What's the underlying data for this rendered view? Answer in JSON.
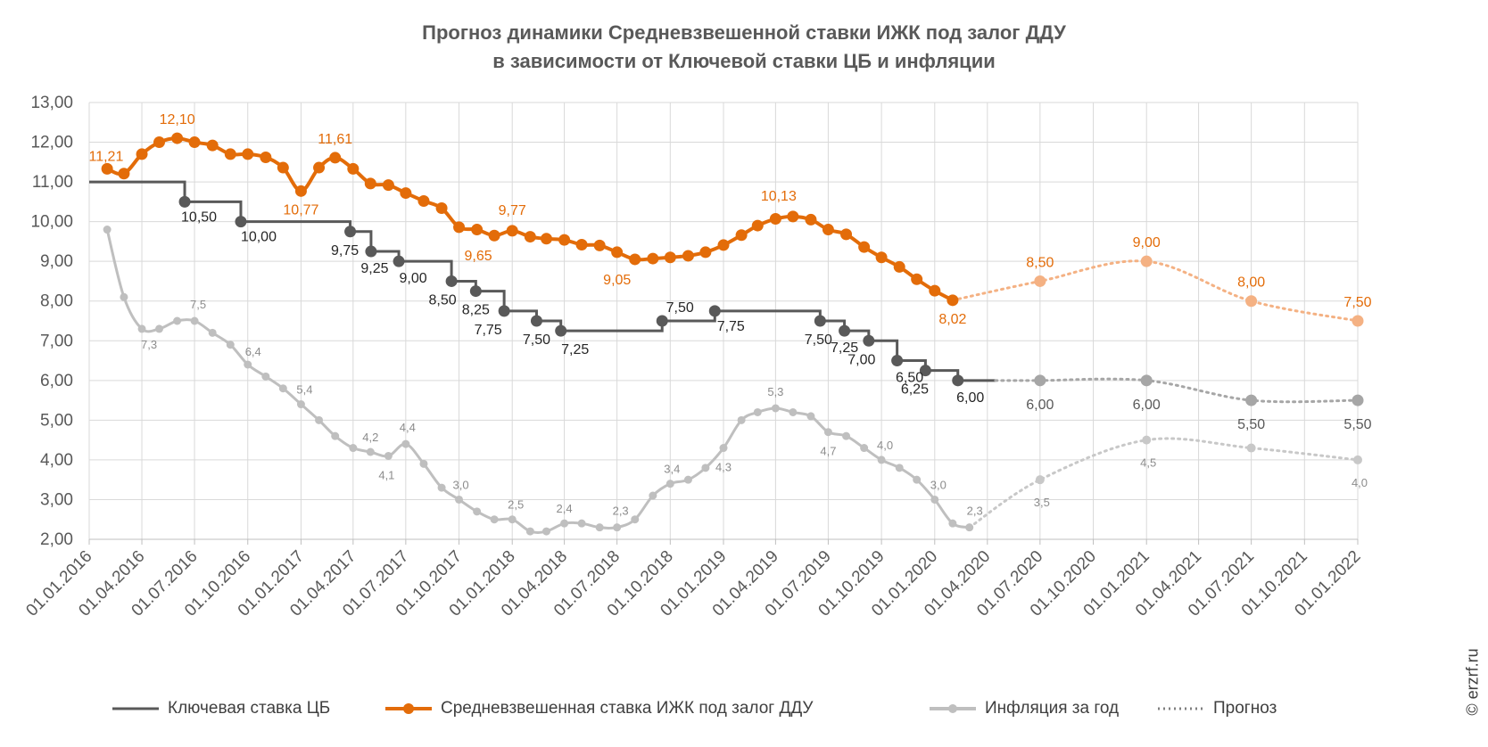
{
  "chart_data": {
    "type": "line",
    "title": "Прогноз динамики Средневзвешенной ставки ИЖК под залог ДДУ",
    "subtitle": "в зависимости от Ключевой ставки ЦБ и инфляции",
    "ylim": [
      2,
      13
    ],
    "yticks": [
      "2,00",
      "3,00",
      "4,00",
      "5,00",
      "6,00",
      "7,00",
      "8,00",
      "9,00",
      "10,00",
      "11,00",
      "12,00",
      "13,00"
    ],
    "xticks": [
      "01.01.2016",
      "01.04.2016",
      "01.07.2016",
      "01.10.2016",
      "01.01.2017",
      "01.04.2017",
      "01.07.2017",
      "01.10.2017",
      "01.01.2018",
      "01.04.2018",
      "01.07.2018",
      "01.10.2018",
      "01.01.2019",
      "01.04.2019",
      "01.07.2019",
      "01.10.2019",
      "01.01.2020",
      "01.04.2020",
      "01.07.2020",
      "01.10.2020",
      "01.01.2021",
      "01.04.2021",
      "01.07.2021",
      "01.10.2021",
      "01.01.2022"
    ],
    "grid": true,
    "legend_position": "bottom",
    "colors": {
      "key_rate": "#595959",
      "mortgage": "#E36C09",
      "mortgage_forecast": "#F4B183",
      "inflation": "#BFBFBF",
      "key_forecast": "#A6A6A6",
      "inflation_forecast": "#C8C8C8",
      "inflation_label": "#8C8C8C"
    },
    "series": [
      {
        "name": "Ключевая ставка ЦБ",
        "style": "step",
        "points": [
          {
            "x": "01.01.2016",
            "y": 11.0
          },
          {
            "x": "14.06.2016",
            "y": 10.5,
            "label": "10,50"
          },
          {
            "x": "19.09.2016",
            "y": 10.0,
            "label": "10,00"
          },
          {
            "x": "27.03.2017",
            "y": 9.75,
            "label": "9,75"
          },
          {
            "x": "02.05.2017",
            "y": 9.25,
            "label": "9,25"
          },
          {
            "x": "19.06.2017",
            "y": 9.0,
            "label": "9,00"
          },
          {
            "x": "18.09.2017",
            "y": 8.5,
            "label": "8,50"
          },
          {
            "x": "30.10.2017",
            "y": 8.25,
            "label": "8,25"
          },
          {
            "x": "18.12.2017",
            "y": 7.75,
            "label": "7,75"
          },
          {
            "x": "12.02.2018",
            "y": 7.5,
            "label": "7,50"
          },
          {
            "x": "26.03.2018",
            "y": 7.25,
            "label": "7,25"
          },
          {
            "x": "17.09.2018",
            "y": 7.5,
            "label": "7,50"
          },
          {
            "x": "17.12.2018",
            "y": 7.75,
            "label": "7,75"
          },
          {
            "x": "17.06.2019",
            "y": 7.5,
            "label": "7,50"
          },
          {
            "x": "29.07.2019",
            "y": 7.25,
            "label": "7,25"
          },
          {
            "x": "09.09.2019",
            "y": 7.0,
            "label": "7,00"
          },
          {
            "x": "28.10.2019",
            "y": 6.5,
            "label": "6,50"
          },
          {
            "x": "16.12.2019",
            "y": 6.25,
            "label": "6,25"
          },
          {
            "x": "10.02.2020",
            "y": 6.0,
            "label": "6,00"
          },
          {
            "x": "15.04.2020",
            "y": 6.0
          }
        ]
      },
      {
        "name": "Средневзвешенная ставка ИЖК под залог ДДУ",
        "style": "smooth",
        "points": [
          {
            "x": "01.02.2016",
            "y": 11.33
          },
          {
            "x": "01.03.2016",
            "y": 11.21,
            "label": "11,21"
          },
          {
            "x": "01.04.2016",
            "y": 11.7
          },
          {
            "x": "01.05.2016",
            "y": 12.0
          },
          {
            "x": "01.06.2016",
            "y": 12.1,
            "label": "12,10"
          },
          {
            "x": "01.07.2016",
            "y": 12.0
          },
          {
            "x": "01.08.2016",
            "y": 11.92
          },
          {
            "x": "01.09.2016",
            "y": 11.7
          },
          {
            "x": "01.10.2016",
            "y": 11.7
          },
          {
            "x": "01.11.2016",
            "y": 11.62
          },
          {
            "x": "01.12.2016",
            "y": 11.36
          },
          {
            "x": "01.01.2017",
            "y": 10.77,
            "label": "10,77"
          },
          {
            "x": "01.02.2017",
            "y": 11.36
          },
          {
            "x": "01.03.2017",
            "y": 11.61,
            "label": "11,61"
          },
          {
            "x": "01.04.2017",
            "y": 11.33
          },
          {
            "x": "01.05.2017",
            "y": 10.96
          },
          {
            "x": "01.06.2017",
            "y": 10.92
          },
          {
            "x": "01.07.2017",
            "y": 10.72
          },
          {
            "x": "01.08.2017",
            "y": 10.52
          },
          {
            "x": "01.09.2017",
            "y": 10.34
          },
          {
            "x": "01.10.2017",
            "y": 9.86
          },
          {
            "x": "01.11.2017",
            "y": 9.8
          },
          {
            "x": "01.12.2017",
            "y": 9.65,
            "label": "9,65"
          },
          {
            "x": "01.01.2018",
            "y": 9.77,
            "label": "9,77"
          },
          {
            "x": "01.02.2018",
            "y": 9.62
          },
          {
            "x": "01.03.2018",
            "y": 9.57
          },
          {
            "x": "01.04.2018",
            "y": 9.54
          },
          {
            "x": "01.05.2018",
            "y": 9.42
          },
          {
            "x": "01.06.2018",
            "y": 9.4
          },
          {
            "x": "01.07.2018",
            "y": 9.23
          },
          {
            "x": "01.08.2018",
            "y": 9.05,
            "label": "9,05"
          },
          {
            "x": "01.09.2018",
            "y": 9.07
          },
          {
            "x": "01.10.2018",
            "y": 9.1
          },
          {
            "x": "01.11.2018",
            "y": 9.14
          },
          {
            "x": "01.12.2018",
            "y": 9.23
          },
          {
            "x": "01.01.2019",
            "y": 9.41
          },
          {
            "x": "01.02.2019",
            "y": 9.66
          },
          {
            "x": "01.03.2019",
            "y": 9.9
          },
          {
            "x": "01.04.2019",
            "y": 10.07
          },
          {
            "x": "01.05.2019",
            "y": 10.13,
            "label": "10,13"
          },
          {
            "x": "01.06.2019",
            "y": 10.05
          },
          {
            "x": "01.07.2019",
            "y": 9.8
          },
          {
            "x": "01.08.2019",
            "y": 9.68
          },
          {
            "x": "01.09.2019",
            "y": 9.36
          },
          {
            "x": "01.10.2019",
            "y": 9.1
          },
          {
            "x": "01.11.2019",
            "y": 8.86
          },
          {
            "x": "01.12.2019",
            "y": 8.55
          },
          {
            "x": "01.01.2020",
            "y": 8.26
          },
          {
            "x": "01.02.2020",
            "y": 8.02,
            "label": "8,02"
          }
        ]
      },
      {
        "name": "Инфляция за год",
        "style": "smooth",
        "points": [
          {
            "x": "01.02.2016",
            "y": 9.8
          },
          {
            "x": "01.03.2016",
            "y": 8.1
          },
          {
            "x": "01.04.2016",
            "y": 7.3,
            "label": "7,3"
          },
          {
            "x": "01.05.2016",
            "y": 7.3
          },
          {
            "x": "01.06.2016",
            "y": 7.5
          },
          {
            "x": "01.07.2016",
            "y": 7.5,
            "label": "7,5"
          },
          {
            "x": "01.08.2016",
            "y": 7.2
          },
          {
            "x": "01.09.2016",
            "y": 6.9
          },
          {
            "x": "01.10.2016",
            "y": 6.4,
            "label": "6,4"
          },
          {
            "x": "01.11.2016",
            "y": 6.1
          },
          {
            "x": "01.12.2016",
            "y": 5.8
          },
          {
            "x": "01.01.2017",
            "y": 5.4,
            "label": "5,4"
          },
          {
            "x": "01.02.2017",
            "y": 5.0
          },
          {
            "x": "01.03.2017",
            "y": 4.6
          },
          {
            "x": "01.04.2017",
            "y": 4.3
          },
          {
            "x": "01.05.2017",
            "y": 4.2,
            "label": "4,2"
          },
          {
            "x": "01.06.2017",
            "y": 4.1,
            "label": "4,1"
          },
          {
            "x": "01.07.2017",
            "y": 4.4,
            "label": "4,4"
          },
          {
            "x": "01.08.2017",
            "y": 3.9
          },
          {
            "x": "01.09.2017",
            "y": 3.3
          },
          {
            "x": "01.10.2017",
            "y": 3.0,
            "label": "3,0"
          },
          {
            "x": "01.11.2017",
            "y": 2.7
          },
          {
            "x": "01.12.2017",
            "y": 2.5
          },
          {
            "x": "01.01.2018",
            "y": 2.5,
            "label": "2,5"
          },
          {
            "x": "01.02.2018",
            "y": 2.2
          },
          {
            "x": "01.03.2018",
            "y": 2.2
          },
          {
            "x": "01.04.2018",
            "y": 2.4,
            "label": "2,4"
          },
          {
            "x": "01.05.2018",
            "y": 2.4
          },
          {
            "x": "01.06.2018",
            "y": 2.3
          },
          {
            "x": "01.07.2018",
            "y": 2.3,
            "label": "2,3"
          },
          {
            "x": "01.08.2018",
            "y": 2.5
          },
          {
            "x": "01.09.2018",
            "y": 3.1
          },
          {
            "x": "01.10.2018",
            "y": 3.4,
            "label": "3,4"
          },
          {
            "x": "01.11.2018",
            "y": 3.5
          },
          {
            "x": "01.12.2018",
            "y": 3.8
          },
          {
            "x": "01.01.2019",
            "y": 4.3,
            "label": "4,3"
          },
          {
            "x": "01.02.2019",
            "y": 5.0
          },
          {
            "x": "01.03.2019",
            "y": 5.2
          },
          {
            "x": "01.04.2019",
            "y": 5.3,
            "label": "5,3"
          },
          {
            "x": "01.05.2019",
            "y": 5.2
          },
          {
            "x": "01.06.2019",
            "y": 5.1
          },
          {
            "x": "01.07.2019",
            "y": 4.7,
            "label": "4,7"
          },
          {
            "x": "01.08.2019",
            "y": 4.6
          },
          {
            "x": "01.09.2019",
            "y": 4.3
          },
          {
            "x": "01.10.2019",
            "y": 4.0,
            "label": "4,0"
          },
          {
            "x": "01.11.2019",
            "y": 3.8
          },
          {
            "x": "01.12.2019",
            "y": 3.5
          },
          {
            "x": "01.01.2020",
            "y": 3.0,
            "label": "3,0"
          },
          {
            "x": "01.02.2020",
            "y": 2.4
          },
          {
            "x": "01.03.2020",
            "y": 2.3,
            "label": "2,3"
          }
        ]
      }
    ],
    "forecasts": [
      {
        "of": "Средневзвешенная ставка ИЖК под залог ДДУ",
        "points": [
          {
            "x": "01.07.2020",
            "y": 8.5,
            "label": "8,50"
          },
          {
            "x": "01.01.2021",
            "y": 9.0,
            "label": "9,00"
          },
          {
            "x": "01.07.2021",
            "y": 8.0,
            "label": "8,00"
          },
          {
            "x": "01.01.2022",
            "y": 7.5,
            "label": "7,50"
          }
        ]
      },
      {
        "of": "Ключевая ставка ЦБ",
        "points": [
          {
            "x": "01.07.2020",
            "y": 6.0,
            "label": "6,00"
          },
          {
            "x": "01.01.2021",
            "y": 6.0,
            "label": "6,00"
          },
          {
            "x": "01.07.2021",
            "y": 5.5,
            "label": "5,50"
          },
          {
            "x": "01.01.2022",
            "y": 5.5,
            "label": "5,50"
          }
        ]
      },
      {
        "of": "Инфляция за год",
        "points": [
          {
            "x": "01.07.2020",
            "y": 3.5,
            "label": "3,5"
          },
          {
            "x": "01.01.2021",
            "y": 4.5,
            "label": "4,5"
          },
          {
            "x": "01.07.2021",
            "y": 4.3
          },
          {
            "x": "01.01.2022",
            "y": 4.0,
            "label": "4,0"
          }
        ]
      }
    ]
  },
  "legend": {
    "key_rate": "Ключевая ставка ЦБ",
    "mortgage": "Средневзвешенная ставка ИЖК под залог ДДУ",
    "inflation": "Инфляция за год",
    "forecast": "Прогноз"
  },
  "credit": "© erzrf.ru"
}
